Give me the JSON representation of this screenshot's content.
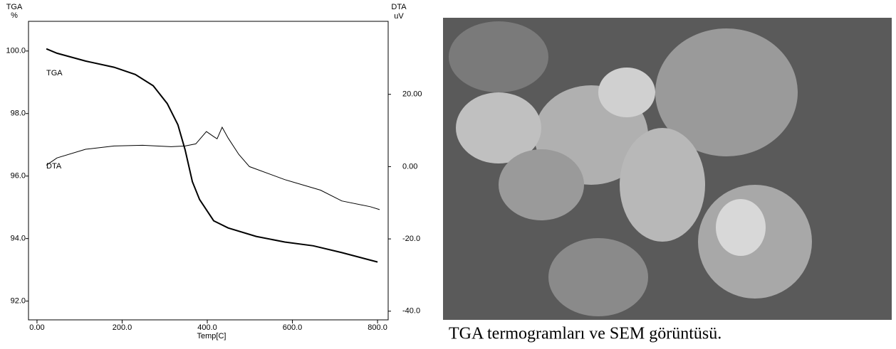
{
  "chart_data": {
    "type": "line",
    "y_label": "TGA",
    "y_unit": "%",
    "y2_label": "DTA",
    "y2_unit": "uV",
    "xlabel": "Temp[C]",
    "xlim": [
      -20,
      825
    ],
    "xticks": [
      {
        "value": 0,
        "label": "0.00"
      },
      {
        "value": 200,
        "label": "200.0"
      },
      {
        "value": 400,
        "label": "400.0"
      },
      {
        "value": 600,
        "label": "600.0"
      },
      {
        "value": 800,
        "label": "800.0"
      }
    ],
    "ylim": [
      91.4,
      100.95
    ],
    "yticks": [
      {
        "value": 92,
        "label": "92.0"
      },
      {
        "value": 94,
        "label": "94.0"
      },
      {
        "value": 96,
        "label": "96.0"
      },
      {
        "value": 98,
        "label": "98.0"
      },
      {
        "value": 100,
        "label": "100.0"
      }
    ],
    "y2lim": [
      -42.4,
      40.2
    ],
    "y2ticks": [
      {
        "value": -40,
        "label": "-40.0"
      },
      {
        "value": -20,
        "label": "-20.0"
      },
      {
        "value": 0,
        "label": "0.00"
      },
      {
        "value": 20,
        "label": "20.00"
      }
    ],
    "series": [
      {
        "name": "TGA",
        "color": "#000000",
        "x": [
          22,
          47,
          114,
          181,
          231,
          273,
          306,
          331,
          348,
          365,
          382,
          415,
          449,
          515,
          582,
          649,
          716,
          800
        ],
        "values": [
          100.07,
          99.93,
          99.68,
          99.48,
          99.25,
          98.89,
          98.32,
          97.64,
          96.84,
          95.82,
          95.25,
          94.57,
          94.34,
          94.07,
          93.89,
          93.77,
          93.55,
          93.25
        ]
      },
      {
        "name": "DTA",
        "color": "#000000",
        "axis": "y2",
        "x": [
          22,
          47,
          114,
          181,
          248,
          315,
          348,
          373,
          398,
          415,
          423,
          435,
          449,
          474,
          499,
          582,
          666,
          716,
          783,
          805
        ],
        "values": [
          0.4,
          2.4,
          4.8,
          5.7,
          5.9,
          5.5,
          5.7,
          6.3,
          9.7,
          8.3,
          7.7,
          10.9,
          7.9,
          3.4,
          0,
          -3.6,
          -6.5,
          -9.5,
          -11.1,
          -11.9
        ]
      }
    ]
  },
  "caption": "TGA termogramları ve SEM görüntüsü."
}
